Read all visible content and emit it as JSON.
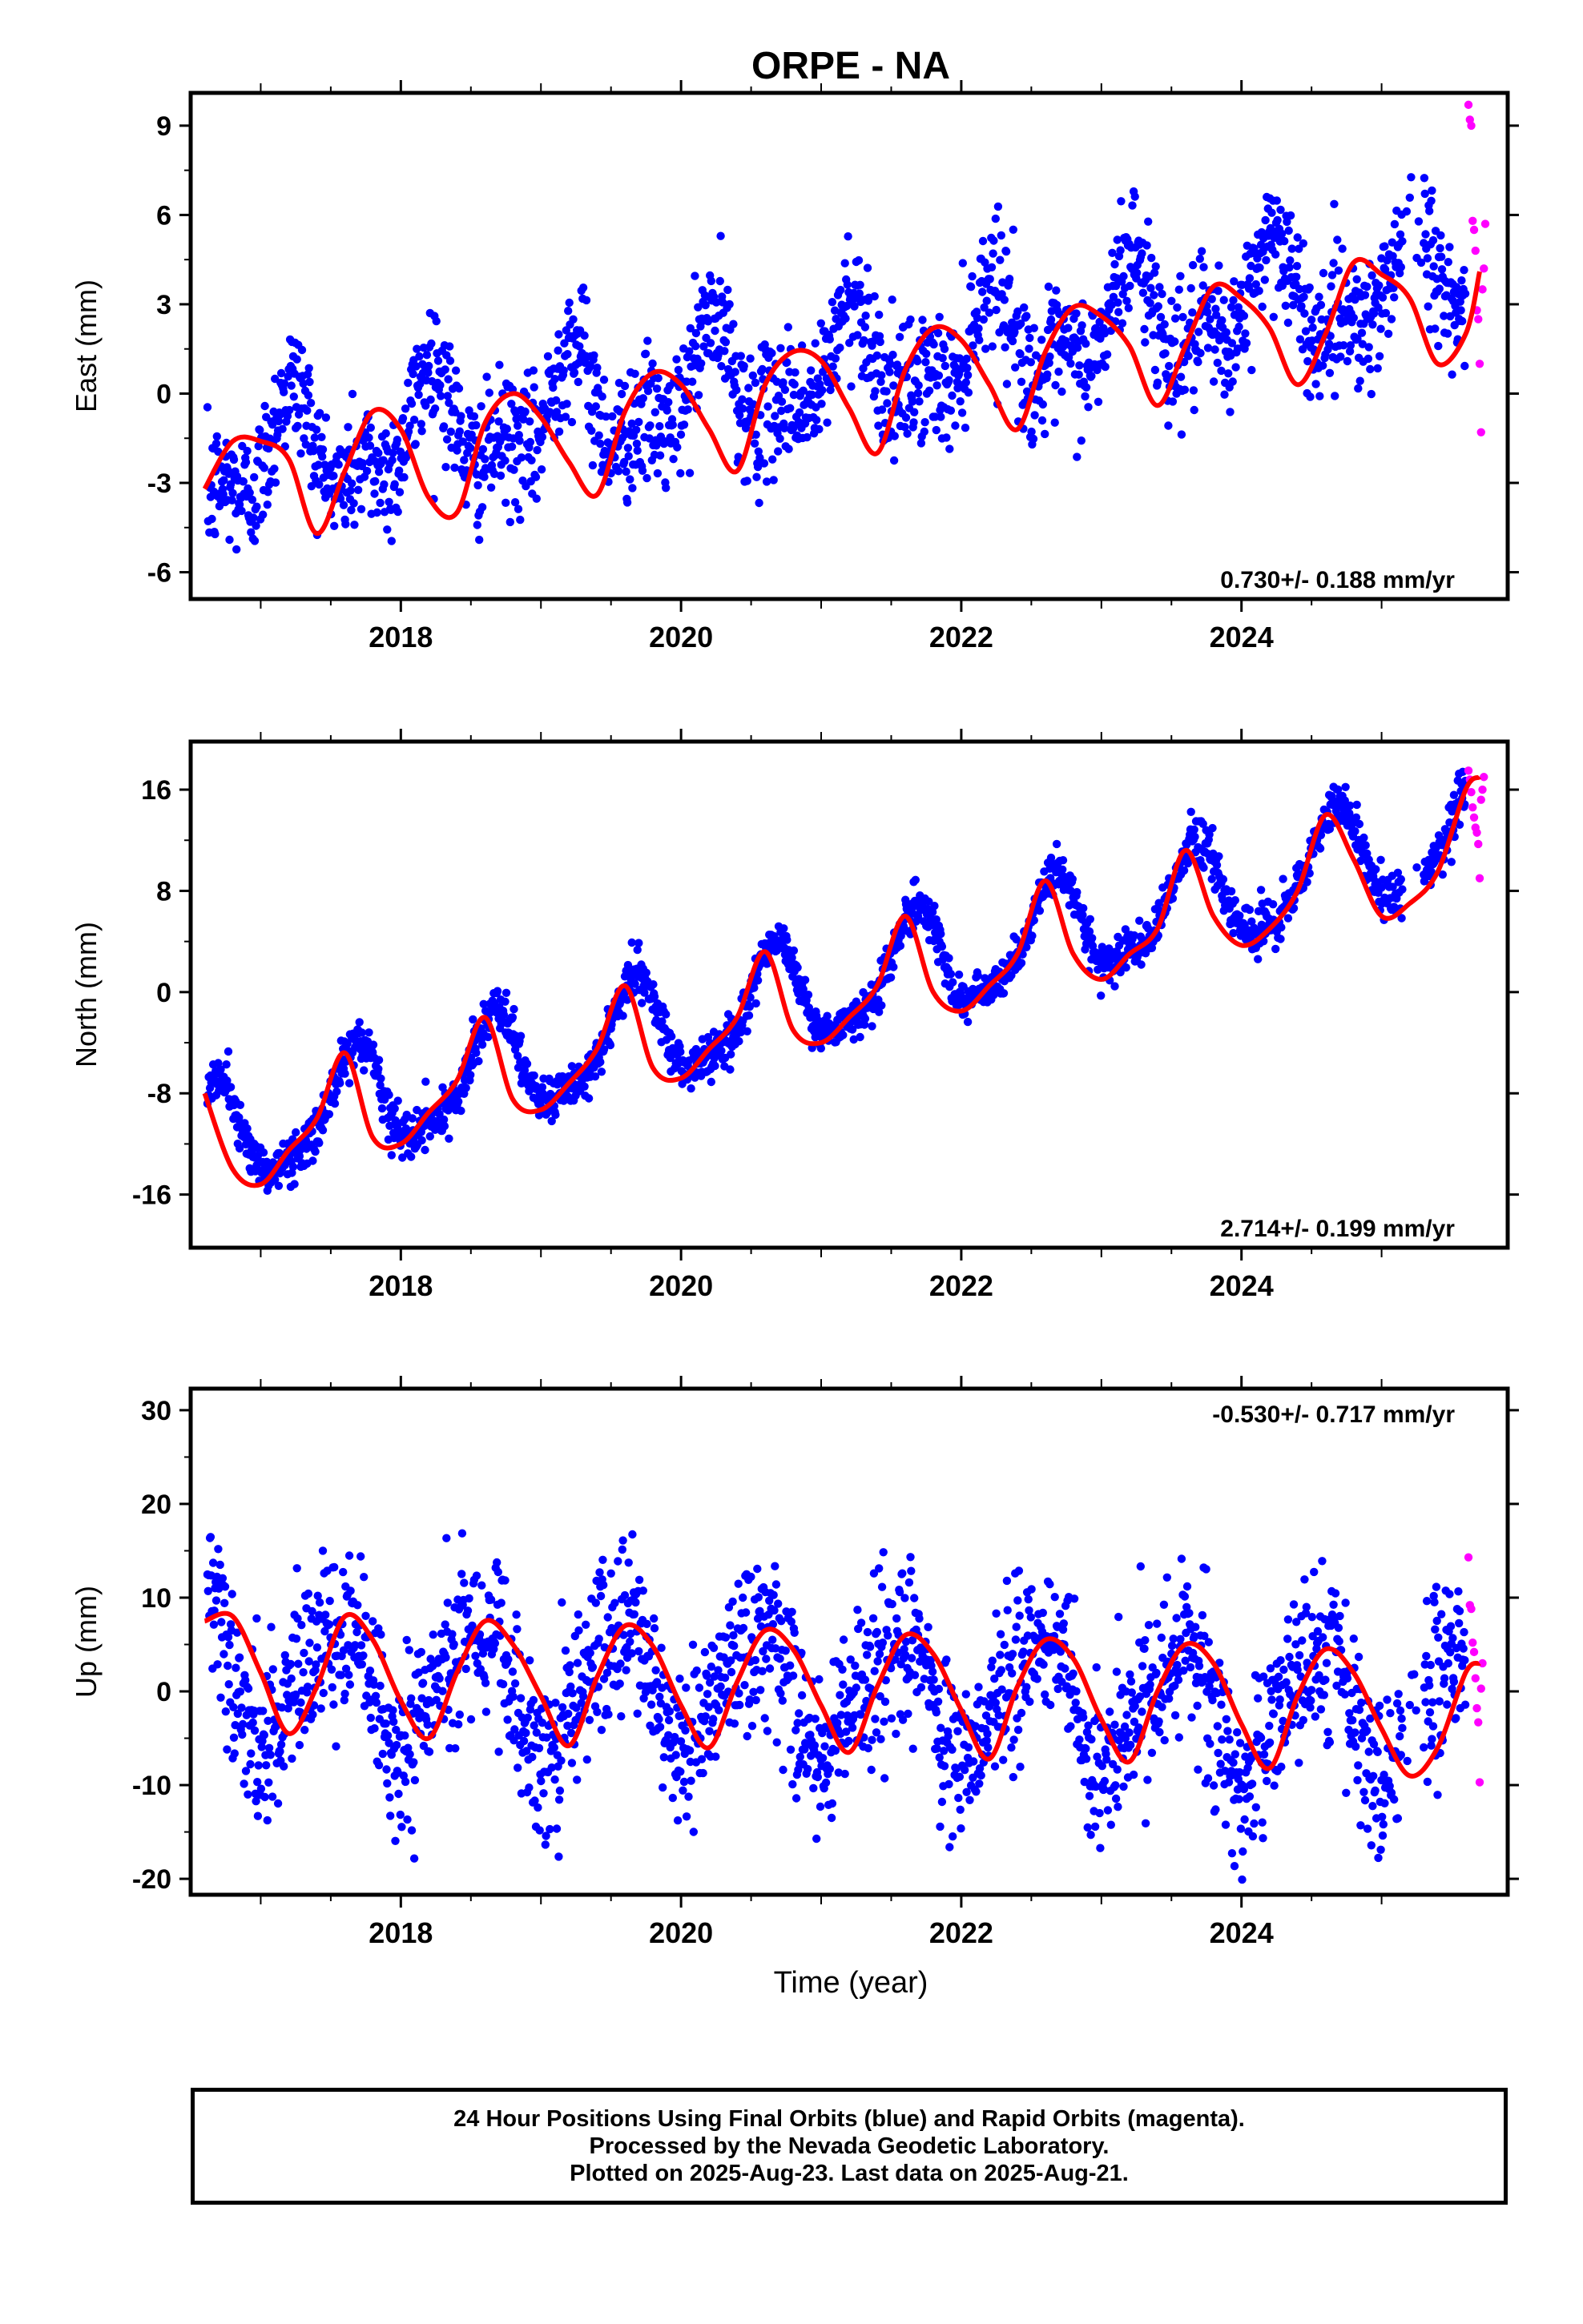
{
  "title": "ORPE - NA",
  "xlabel": "Time (year)",
  "colors": {
    "final": "#0000ff",
    "rapid": "#ff00ff",
    "model": "#ff0000",
    "frame": "#000000"
  },
  "footer": {
    "line1": "24 Hour Positions Using Final Orbits (blue) and Rapid Orbits (magenta).",
    "line2": "Processed by the Nevada Geodetic Laboratory.",
    "line3": "Plotted on 2025-Aug-23. Last data on 2025-Aug-21."
  },
  "chart_data": [
    {
      "type": "scatter",
      "panel": "east",
      "ylabel": "East (mm)",
      "rate_label": "0.730+/- 0.188 mm/yr",
      "xlim": [
        2016.5,
        2025.9
      ],
      "ylim": [
        -6.9,
        10.1
      ],
      "xticks": [
        2018,
        2020,
        2022,
        2024
      ],
      "yticks": [
        -6,
        -3,
        0,
        3,
        6,
        9
      ],
      "series": [
        {
          "name": "Final Orbits (blue)",
          "style": "points",
          "trend": {
            "x0": 2016.6,
            "y0": -2.5,
            "rate": 0.73,
            "amp1": 1.5,
            "phase1": 4.0,
            "amp2": 0.9,
            "phase2": 0.0,
            "noise": 1.1
          }
        },
        {
          "name": "Rapid Orbits (magenta)",
          "style": "points",
          "x": [
            2025.62,
            2025.63,
            2025.64,
            2025.65,
            2025.66,
            2025.67,
            2025.68,
            2025.69,
            2025.7,
            2025.71,
            2025.72,
            2025.73,
            2025.74
          ],
          "y": [
            9.7,
            9.2,
            9.0,
            5.8,
            5.5,
            4.8,
            2.8,
            2.5,
            1.0,
            -1.3,
            3.5,
            4.2,
            5.7
          ]
        },
        {
          "name": "Model",
          "style": "line",
          "x": [
            2016.6,
            2016.8,
            2017.0,
            2017.2,
            2017.4,
            2017.6,
            2017.8,
            2018.0,
            2018.2,
            2018.4,
            2018.6,
            2018.8,
            2019.0,
            2019.2,
            2019.4,
            2019.6,
            2019.8,
            2020.0,
            2020.2,
            2020.4,
            2020.6,
            2020.8,
            2021.0,
            2021.2,
            2021.4,
            2021.6,
            2021.8,
            2022.0,
            2022.2,
            2022.4,
            2022.6,
            2022.8,
            2023.0,
            2023.2,
            2023.4,
            2023.6,
            2023.8,
            2024.0,
            2024.2,
            2024.4,
            2024.6,
            2024.8,
            2025.0,
            2025.2,
            2025.4,
            2025.6,
            2025.7
          ],
          "y": [
            -3.2,
            -1.6,
            -1.6,
            -2.2,
            -4.7,
            -2.6,
            -0.6,
            -1.2,
            -3.5,
            -4.0,
            -1.0,
            0.0,
            -0.8,
            -2.3,
            -3.4,
            -0.6,
            0.7,
            0.3,
            -1.2,
            -2.6,
            0.3,
            1.4,
            1.1,
            -0.5,
            -2.0,
            0.8,
            2.2,
            1.8,
            0.3,
            -1.2,
            1.4,
            2.9,
            2.6,
            1.6,
            -0.4,
            1.6,
            3.6,
            3.2,
            2.2,
            0.3,
            2.0,
            4.4,
            4.0,
            3.2,
            1.0,
            2.0,
            4.1
          ]
        }
      ]
    },
    {
      "type": "scatter",
      "panel": "north",
      "ylabel": "North (mm)",
      "rate_label": "2.714+/- 0.199 mm/yr",
      "xlim": [
        2016.5,
        2025.9
      ],
      "ylim": [
        -20.2,
        19.8
      ],
      "xticks": [
        2018,
        2020,
        2022,
        2024
      ],
      "yticks": [
        -16,
        -8,
        0,
        8,
        16
      ],
      "series": [
        {
          "name": "Final Orbits (blue)",
          "style": "points",
          "trend": {
            "x0": 2016.6,
            "y0": -12.0,
            "rate": 2.714,
            "amp1": 4.0,
            "phase1": 1.2,
            "amp2": 1.0,
            "phase2": 0.4,
            "noise": 0.9
          }
        },
        {
          "name": "Rapid Orbits (magenta)",
          "style": "points",
          "x": [
            2025.62,
            2025.63,
            2025.64,
            2025.65,
            2025.66,
            2025.67,
            2025.68,
            2025.69,
            2025.7,
            2025.71,
            2025.72,
            2025.73
          ],
          "y": [
            17.5,
            16.8,
            15.8,
            14.6,
            13.8,
            13.0,
            12.6,
            11.7,
            9.0,
            15.2,
            16.0,
            17.0
          ]
        },
        {
          "name": "Model",
          "style": "line",
          "x": [
            2016.6,
            2016.8,
            2017.0,
            2017.2,
            2017.4,
            2017.6,
            2017.8,
            2018.0,
            2018.2,
            2018.4,
            2018.6,
            2018.8,
            2019.0,
            2019.2,
            2019.4,
            2019.6,
            2019.8,
            2020.0,
            2020.2,
            2020.4,
            2020.6,
            2020.8,
            2021.0,
            2021.2,
            2021.4,
            2021.6,
            2021.8,
            2022.0,
            2022.2,
            2022.4,
            2022.6,
            2022.8,
            2023.0,
            2023.2,
            2023.4,
            2023.6,
            2023.8,
            2024.0,
            2024.2,
            2024.4,
            2024.6,
            2024.8,
            2025.0,
            2025.2,
            2025.4,
            2025.6,
            2025.7
          ],
          "y": [
            -8.0,
            -14.0,
            -15.2,
            -12.5,
            -10.0,
            -4.8,
            -11.5,
            -12.0,
            -9.5,
            -7.0,
            -2.0,
            -8.5,
            -9.3,
            -7.2,
            -4.5,
            0.5,
            -6.0,
            -6.8,
            -4.5,
            -2.0,
            3.2,
            -3.0,
            -4.0,
            -2.0,
            0.5,
            6.0,
            0.0,
            -1.5,
            0.5,
            3.0,
            8.8,
            3.0,
            1.0,
            3.0,
            5.0,
            11.2,
            6.0,
            3.7,
            5.0,
            8.0,
            14.0,
            10.5,
            6.0,
            7.0,
            9.5,
            16.0,
            17.0
          ]
        }
      ]
    },
    {
      "type": "scatter",
      "panel": "up",
      "ylabel": "Up (mm)",
      "rate_label": "-0.530+/- 0.717 mm/yr",
      "xlim": [
        2016.5,
        2025.9
      ],
      "ylim": [
        -21.7,
        32.3
      ],
      "xticks": [
        2018,
        2020,
        2022,
        2024
      ],
      "yticks": [
        -20,
        -10,
        0,
        10,
        20,
        30
      ],
      "series": [
        {
          "name": "Final Orbits (blue)",
          "style": "points",
          "trend": {
            "x0": 2016.6,
            "y0": 2.0,
            "rate": -0.53,
            "amp1": 6.5,
            "phase1": 2.0,
            "amp2": 1.5,
            "phase2": 0.2,
            "noise": 4.5
          }
        },
        {
          "name": "Rapid Orbits (magenta)",
          "style": "points",
          "x": [
            2025.62,
            2025.63,
            2025.64,
            2025.65,
            2025.66,
            2025.67,
            2025.68,
            2025.69,
            2025.7,
            2025.71,
            2025.72
          ],
          "y": [
            14.3,
            9.2,
            8.8,
            5.2,
            4.2,
            1.4,
            -1.8,
            -3.3,
            -9.7,
            0.3,
            3.0
          ]
        },
        {
          "name": "Model",
          "style": "line",
          "x": [
            2016.6,
            2016.8,
            2017.0,
            2017.2,
            2017.4,
            2017.6,
            2017.8,
            2018.0,
            2018.2,
            2018.4,
            2018.6,
            2018.8,
            2019.0,
            2019.2,
            2019.4,
            2019.6,
            2019.8,
            2020.0,
            2020.2,
            2020.4,
            2020.6,
            2020.8,
            2021.0,
            2021.2,
            2021.4,
            2021.6,
            2021.8,
            2022.0,
            2022.2,
            2022.4,
            2022.6,
            2022.8,
            2023.0,
            2023.2,
            2023.4,
            2023.6,
            2023.8,
            2024.0,
            2024.2,
            2024.4,
            2024.6,
            2024.8,
            2025.0,
            2025.2,
            2025.4,
            2025.6,
            2025.7
          ],
          "y": [
            7.5,
            8.0,
            2.0,
            -4.5,
            0.5,
            8.0,
            5.5,
            -1.0,
            -5.0,
            2.0,
            7.5,
            5.0,
            -0.5,
            -5.8,
            1.5,
            7.0,
            4.8,
            -1.5,
            -6.0,
            1.0,
            6.5,
            4.5,
            -1.5,
            -6.5,
            0.5,
            6.0,
            4.0,
            -2.0,
            -7.2,
            0.5,
            5.5,
            3.5,
            -3.0,
            -7.5,
            0.0,
            5.0,
            3.0,
            -3.5,
            -8.2,
            -0.5,
            4.5,
            2.0,
            -4.0,
            -9.0,
            -6.0,
            2.0,
            3.0
          ]
        }
      ]
    }
  ]
}
